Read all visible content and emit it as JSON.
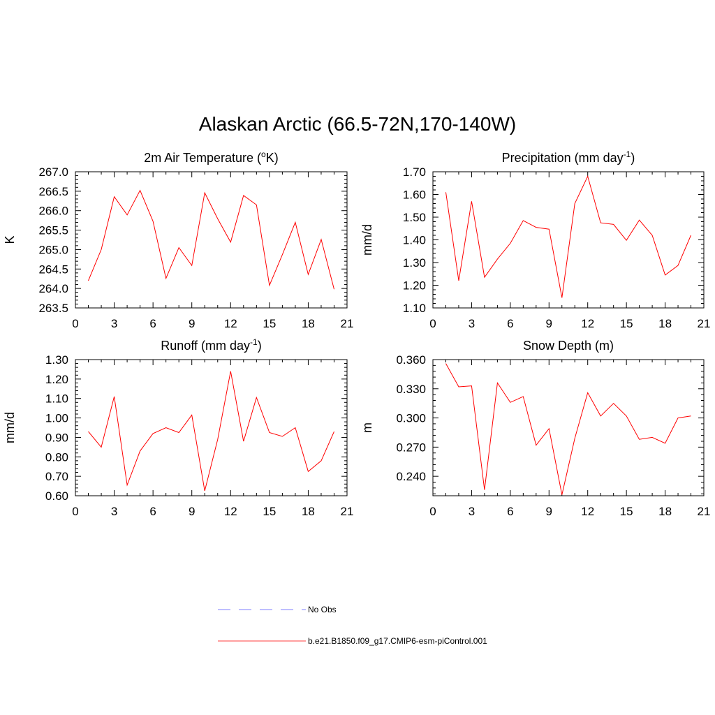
{
  "figure_title": "Alaskan Arctic (66.5-72N,170-140W)",
  "legend": [
    {
      "label": "No Obs",
      "color": "#9999ff",
      "style": "dashed"
    },
    {
      "label": "b.e21.B1850.f09_g17.CMIP6-esm-piControl.001",
      "color": "#ff6666",
      "style": "solid"
    }
  ],
  "chart_data": [
    {
      "type": "line",
      "title": "2m Air Temperature (",
      "title_sup": "o",
      "title_end": "K)",
      "ylabel": "K",
      "xlabel": "",
      "xlim": [
        0,
        21
      ],
      "ylim": [
        263.5,
        267.0
      ],
      "xticks": [
        "0",
        "3",
        "6",
        "9",
        "12",
        "15",
        "18",
        "21"
      ],
      "yticks": [
        "263.5",
        "264.0",
        "264.5",
        "265.0",
        "265.5",
        "266.0",
        "266.5",
        "267.0"
      ],
      "line_color": "#ff0000",
      "x": [
        1,
        2,
        3,
        4,
        5,
        6,
        7,
        8,
        9,
        10,
        11,
        12,
        13,
        14,
        15,
        16,
        17,
        18,
        19,
        20
      ],
      "y": [
        264.2,
        265.0,
        266.36,
        265.89,
        266.52,
        265.73,
        264.26,
        265.05,
        264.59,
        266.46,
        265.79,
        265.19,
        266.39,
        266.15,
        264.08,
        264.87,
        265.7,
        264.36,
        265.26,
        263.98
      ]
    },
    {
      "type": "line",
      "title": "Precipitation (mm day",
      "title_sup": "-1",
      "title_end": ")",
      "ylabel": "mm/d",
      "xlabel": "",
      "xlim": [
        0,
        21
      ],
      "ylim": [
        1.1,
        1.7
      ],
      "xticks": [
        "0",
        "3",
        "6",
        "9",
        "12",
        "15",
        "18",
        "21"
      ],
      "yticks": [
        "1.10",
        "1.20",
        "1.30",
        "1.40",
        "1.50",
        "1.60",
        "1.70"
      ],
      "line_color": "#ff0000",
      "x": [
        1,
        2,
        3,
        4,
        5,
        6,
        7,
        8,
        9,
        10,
        11,
        12,
        13,
        14,
        15,
        16,
        17,
        18,
        19,
        20
      ],
      "y": [
        1.61,
        1.22,
        1.57,
        1.235,
        1.315,
        1.385,
        1.485,
        1.455,
        1.447,
        1.145,
        1.56,
        1.68,
        1.475,
        1.468,
        1.398,
        1.487,
        1.42,
        1.245,
        1.287,
        1.42
      ]
    },
    {
      "type": "line",
      "title": "Runoff (mm day",
      "title_sup": "-1",
      "title_end": ")",
      "ylabel": "mm/d",
      "xlabel": "",
      "xlim": [
        0,
        21
      ],
      "ylim": [
        0.6,
        1.3
      ],
      "xticks": [
        "0",
        "3",
        "6",
        "9",
        "12",
        "15",
        "18",
        "21"
      ],
      "yticks": [
        "0.60",
        "0.70",
        "0.80",
        "0.90",
        "1.00",
        "1.10",
        "1.20",
        "1.30"
      ],
      "line_color": "#ff0000",
      "x": [
        1,
        2,
        3,
        4,
        5,
        6,
        7,
        8,
        9,
        10,
        11,
        12,
        13,
        14,
        15,
        16,
        17,
        18,
        19,
        20
      ],
      "y": [
        0.93,
        0.85,
        1.11,
        0.655,
        0.83,
        0.92,
        0.95,
        0.925,
        1.015,
        0.625,
        0.89,
        1.24,
        0.88,
        1.105,
        0.925,
        0.905,
        0.95,
        0.725,
        0.78,
        0.93
      ]
    },
    {
      "type": "line",
      "title": "Snow Depth (m)",
      "title_sup": "",
      "title_end": "",
      "ylabel": "m",
      "xlabel": "",
      "xlim": [
        0,
        21
      ],
      "ylim": [
        0.22,
        0.36
      ],
      "xticks": [
        "0",
        "3",
        "6",
        "9",
        "12",
        "15",
        "18",
        "21"
      ],
      "yticks": [
        "0.240",
        "0.270",
        "0.300",
        "0.330",
        "0.360"
      ],
      "ytick_values": [
        0.24,
        0.27,
        0.3,
        0.33,
        0.36
      ],
      "line_color": "#ff0000",
      "x": [
        1,
        2,
        3,
        4,
        5,
        6,
        7,
        8,
        9,
        10,
        11,
        12,
        13,
        14,
        15,
        16,
        17,
        18,
        19,
        20
      ],
      "y": [
        0.356,
        0.332,
        0.333,
        0.226,
        0.336,
        0.316,
        0.322,
        0.272,
        0.289,
        0.221,
        0.279,
        0.326,
        0.302,
        0.315,
        0.302,
        0.278,
        0.28,
        0.274,
        0.3,
        0.302
      ]
    }
  ]
}
